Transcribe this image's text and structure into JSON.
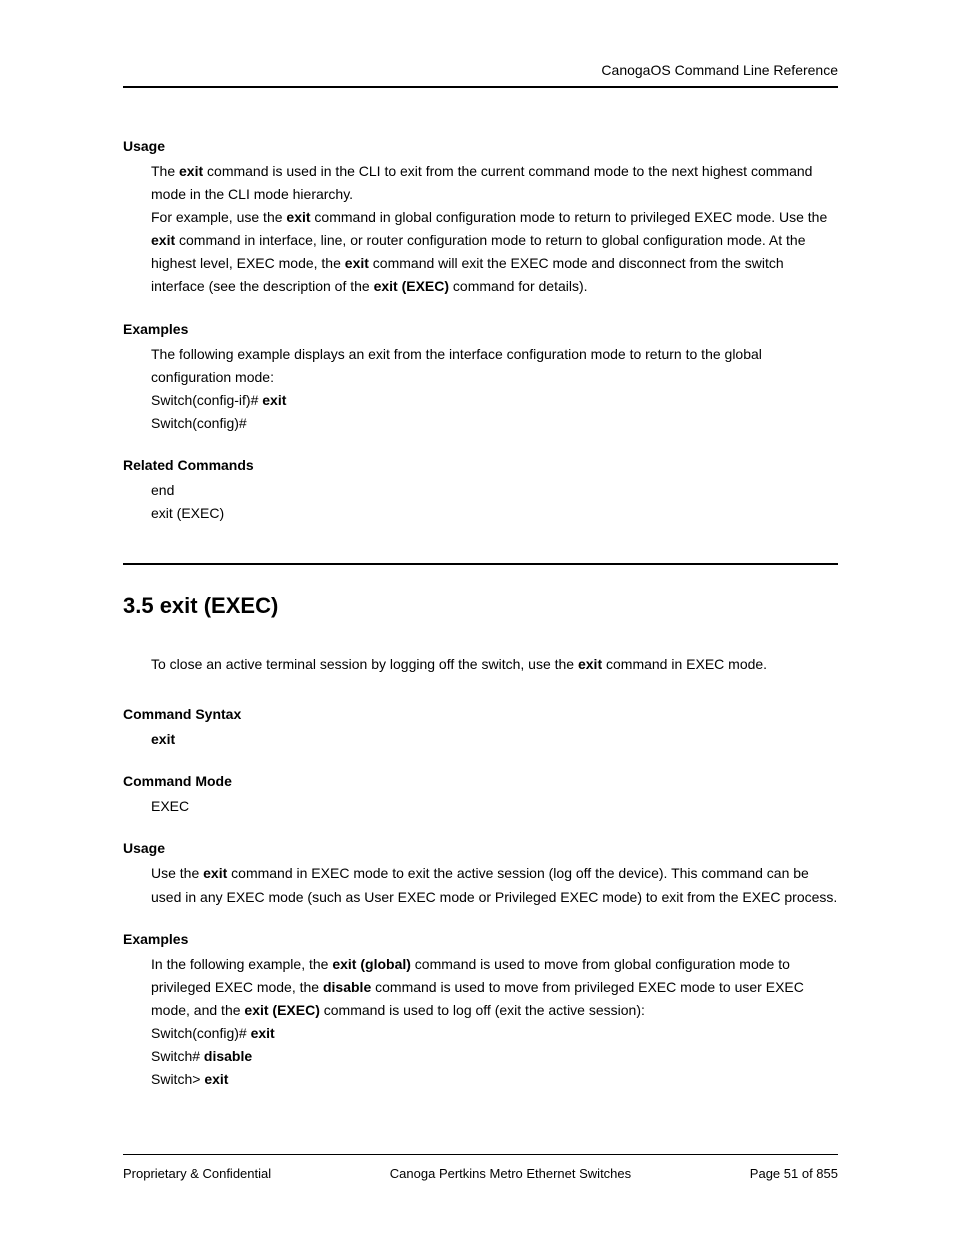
{
  "header": {
    "title": "CanogaOS Command Line Reference"
  },
  "sec1": {
    "usage": {
      "heading": "Usage",
      "p1a": "The ",
      "p1b": "exit",
      "p1c": " command is used in the CLI to exit from the current command mode to the next highest command mode in the CLI mode hierarchy.",
      "p2a": "For example, use the ",
      "p2b": "exit",
      "p2c": " command in global configuration mode to return to privileged EXEC mode. Use the ",
      "p2d": "exit",
      "p2e": " command in interface, line, or router configuration mode to return to global configuration mode. At the highest level, EXEC mode, the ",
      "p2f": "exit",
      "p2g": " command will exit the EXEC mode and disconnect from the switch interface (see the description of the ",
      "p2h": "exit (EXEC)",
      "p2i": " command for details)."
    },
    "examples": {
      "heading": "Examples",
      "p1": "The following example displays an exit from the interface configuration mode to return to the global configuration mode:",
      "l1a": "Switch(config-if)# ",
      "l1b": "exit",
      "l2": "Switch(config)#"
    },
    "related": {
      "heading": "Related Commands",
      "l1": "end",
      "l2": "exit (EXEC)"
    }
  },
  "chapter": {
    "title": "3.5  exit (EXEC)"
  },
  "sec2": {
    "intro": {
      "a": "To close an active terminal session by logging off the switch, use the ",
      "b": "exit",
      "c": " command in EXEC mode."
    },
    "syntax": {
      "heading": "Command Syntax",
      "val": "exit"
    },
    "mode": {
      "heading": "Command Mode",
      "val": "EXEC"
    },
    "usage": {
      "heading": "Usage",
      "a": "Use the ",
      "b": "exit",
      "c": " command in EXEC mode to exit the active session (log off the device). This command can be used in any EXEC mode (such as User EXEC mode or Privileged EXEC mode) to exit from the EXEC process."
    },
    "examples": {
      "heading": "Examples",
      "a": "In the following example, the ",
      "b": "exit (global)",
      "c": " command is used to move from global configuration mode to privileged EXEC mode, the ",
      "d": "disable",
      "e": " command is used to move from privileged EXEC mode to user EXEC mode, and the ",
      "f": "exit (EXEC)",
      "g": " command is used to log off (exit the active session):",
      "l1a": "Switch(config)# ",
      "l1b": "exit",
      "l2a": "Switch# ",
      "l2b": "disable",
      "l3a": "Switch> ",
      "l3b": "exit"
    }
  },
  "footer": {
    "left": "Proprietary & Confidential",
    "center": "Canoga Pertkins Metro Ethernet Switches",
    "right": "Page 51 of 855"
  }
}
